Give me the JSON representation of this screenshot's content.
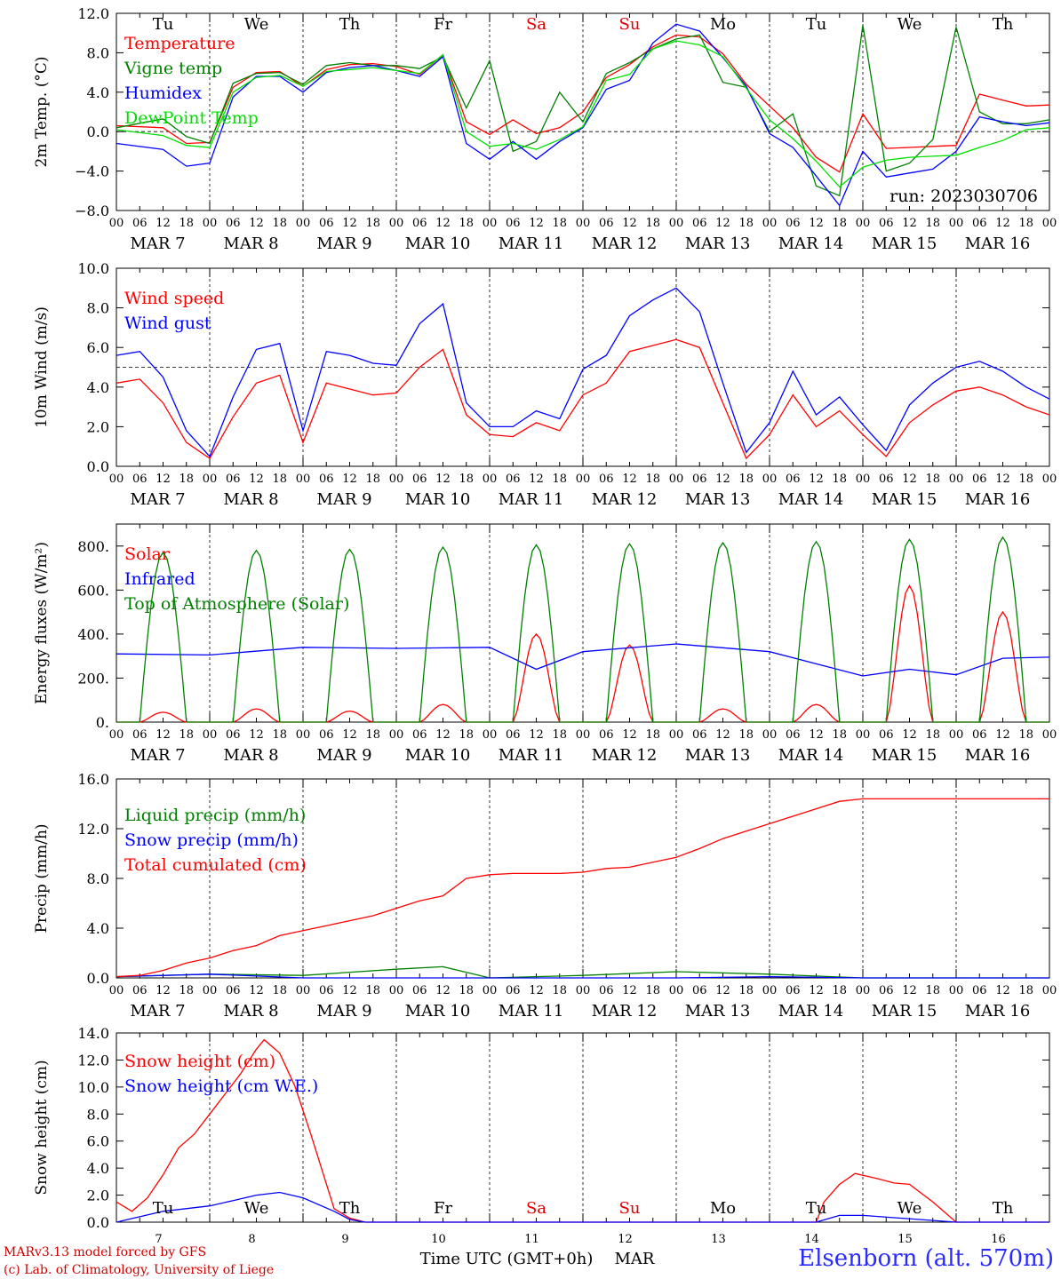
{
  "footer": {
    "model_line": "MARv3.13 model forced by GFS",
    "lab_line": "(c) Lab. of Climatology, University of Liege",
    "station": "Elsenborn (alt. 570m)",
    "xlabel": "Time UTC (GMT+0h)",
    "xlabel_month": "MAR",
    "run": "run: 2023030706"
  },
  "days": [
    "Tu",
    "We",
    "Th",
    "Fr",
    "Sa",
    "Su",
    "Mo",
    "Tu",
    "We",
    "Th"
  ],
  "day_colors": [
    "#000000",
    "#000000",
    "#000000",
    "#000000",
    "#e00000",
    "#e00000",
    "#000000",
    "#000000",
    "#000000",
    "#000000"
  ],
  "date_labels": [
    "MAR  7",
    "MAR  8",
    "MAR  9",
    "MAR 10",
    "MAR 11",
    "MAR 12",
    "MAR 13",
    "MAR 14",
    "MAR 15",
    "MAR 16"
  ],
  "bottom_day_numbers": [
    "7",
    "8",
    "9",
    "10",
    "11",
    "12",
    "13",
    "14",
    "15",
    "16"
  ],
  "hour_ticks": [
    "00",
    "06",
    "12",
    "18"
  ],
  "colors": {
    "red": "#ff0000",
    "green": "#008000",
    "blue": "#0000ff",
    "lightgreen": "#00e000"
  },
  "chart_data": [
    {
      "type": "line",
      "ylabel": "2m Temp. (°C)",
      "ylim": [
        -8,
        12
      ],
      "yticks": [
        "12.0",
        "8.0",
        "4.0",
        "0.0",
        "−4.0",
        "−8.0"
      ],
      "x_unit": "hours since MAR 7 00 UTC",
      "reference_line": 0,
      "series": [
        {
          "name": "Temperature",
          "color": "#ff0000",
          "x": [
            0,
            12,
            18,
            24,
            30,
            36,
            42,
            48,
            54,
            60,
            66,
            72,
            78,
            84,
            90,
            96,
            102,
            108,
            114,
            120,
            126,
            132,
            138,
            144,
            150,
            156,
            162,
            168,
            174,
            180,
            186,
            192,
            198,
            204,
            210,
            216,
            222,
            228,
            234,
            240
          ],
          "y": [
            0.6,
            0.4,
            -1.2,
            -1.1,
            4.5,
            6.0,
            6.1,
            4.6,
            6.3,
            6.8,
            6.9,
            6.6,
            5.8,
            7.8,
            1.0,
            -0.3,
            1.2,
            -0.2,
            0.4,
            2.0,
            5.5,
            6.8,
            8.6,
            9.8,
            9.6,
            7.9,
            4.8,
            2.6,
            0.4,
            -2.6,
            -4.1,
            1.8,
            -1.7,
            -1.6,
            -1.5,
            -1.4,
            3.8,
            3.2,
            2.6,
            2.7
          ]
        },
        {
          "name": "Vigne temp",
          "color": "#008000",
          "x": [
            0,
            12,
            18,
            24,
            30,
            36,
            42,
            48,
            54,
            60,
            66,
            72,
            78,
            84,
            90,
            96,
            102,
            108,
            114,
            120,
            126,
            132,
            138,
            144,
            150,
            156,
            162,
            168,
            174,
            180,
            186,
            192,
            198,
            204,
            210,
            216,
            222,
            228,
            234,
            240
          ],
          "y": [
            0.4,
            1.3,
            -0.5,
            -1.2,
            4.9,
            5.9,
            6.0,
            4.8,
            6.7,
            7.0,
            6.7,
            6.7,
            6.4,
            7.6,
            2.4,
            7.2,
            -2.0,
            -1.0,
            4.0,
            1.0,
            5.9,
            7.0,
            8.4,
            9.4,
            9.8,
            5.0,
            4.5,
            0.0,
            1.8,
            -5.5,
            -6.5,
            10.8,
            -4.0,
            -3.2,
            -0.8,
            10.6,
            2.0,
            0.8,
            0.8,
            1.2
          ]
        },
        {
          "name": "Humidex",
          "color": "#0000ff",
          "x": [
            0,
            12,
            18,
            24,
            30,
            36,
            42,
            48,
            54,
            60,
            66,
            72,
            78,
            84,
            90,
            96,
            102,
            108,
            114,
            120,
            126,
            132,
            138,
            144,
            150,
            156,
            162,
            168,
            174,
            180,
            186,
            192,
            198,
            204,
            210,
            216,
            222,
            228,
            234,
            240
          ],
          "y": [
            -1.2,
            -1.8,
            -3.5,
            -3.2,
            3.5,
            5.6,
            5.6,
            4.0,
            6.0,
            6.5,
            6.7,
            6.2,
            5.6,
            7.6,
            -1.2,
            -2.8,
            -1.0,
            -2.8,
            -1.0,
            0.4,
            4.3,
            5.2,
            9.0,
            10.9,
            10.2,
            7.5,
            4.6,
            -0.2,
            -1.6,
            -4.5,
            -7.5,
            -2.0,
            -4.6,
            -4.2,
            -3.8,
            -2.0,
            1.5,
            1.0,
            0.6,
            0.9
          ]
        },
        {
          "name": "DewPoint Temp",
          "color": "#00e000",
          "x": [
            0,
            12,
            18,
            24,
            30,
            36,
            42,
            48,
            54,
            60,
            66,
            72,
            78,
            84,
            90,
            96,
            102,
            108,
            114,
            120,
            126,
            132,
            138,
            144,
            150,
            156,
            162,
            168,
            174,
            180,
            186,
            192,
            198,
            204,
            210,
            216,
            222,
            228,
            234,
            240
          ],
          "y": [
            0.2,
            -0.4,
            -1.4,
            -1.6,
            4.0,
            5.5,
            5.7,
            4.6,
            6.1,
            6.3,
            6.5,
            6.2,
            5.9,
            7.8,
            0.0,
            -1.5,
            -1.2,
            -1.8,
            -0.8,
            0.5,
            5.2,
            5.8,
            8.4,
            9.2,
            8.8,
            7.6,
            4.4,
            1.2,
            -0.7,
            -3.0,
            -5.6,
            -3.6,
            -2.9,
            -2.6,
            -2.5,
            -2.4,
            -1.6,
            -0.9,
            0.2,
            0.4
          ]
        }
      ]
    },
    {
      "type": "line",
      "ylabel": "10m Wind (m/s)",
      "ylim": [
        0,
        10
      ],
      "yticks": [
        "10.0",
        "8.0",
        "6.0",
        "4.0",
        "2.0",
        "0.0"
      ],
      "reference_line": 5,
      "series": [
        {
          "name": "Wind speed",
          "color": "#ff0000",
          "x": [
            0,
            6,
            12,
            18,
            24,
            30,
            36,
            42,
            48,
            54,
            60,
            66,
            72,
            78,
            84,
            90,
            96,
            102,
            108,
            114,
            120,
            126,
            132,
            138,
            144,
            150,
            156,
            162,
            168,
            174,
            180,
            186,
            192,
            198,
            204,
            210,
            216,
            222,
            228,
            234,
            240
          ],
          "y": [
            4.2,
            4.4,
            3.2,
            1.2,
            0.4,
            2.5,
            4.2,
            4.6,
            1.2,
            4.2,
            3.9,
            3.6,
            3.7,
            5.0,
            5.9,
            2.6,
            1.6,
            1.5,
            2.2,
            1.8,
            3.6,
            4.2,
            5.8,
            6.1,
            6.4,
            6.0,
            3.2,
            0.4,
            1.6,
            3.6,
            2.0,
            2.8,
            1.6,
            0.5,
            2.2,
            3.1,
            3.8,
            4.0,
            3.6,
            3.0,
            2.6
          ]
        },
        {
          "name": "Wind gust",
          "color": "#0000ff",
          "x": [
            0,
            6,
            12,
            18,
            24,
            30,
            36,
            42,
            48,
            54,
            60,
            66,
            72,
            78,
            84,
            90,
            96,
            102,
            108,
            114,
            120,
            126,
            132,
            138,
            144,
            150,
            156,
            162,
            168,
            174,
            180,
            186,
            192,
            198,
            204,
            210,
            216,
            222,
            228,
            234,
            240
          ],
          "y": [
            5.6,
            5.8,
            4.5,
            1.8,
            0.5,
            3.5,
            5.9,
            6.2,
            1.8,
            5.8,
            5.6,
            5.2,
            5.1,
            7.2,
            8.2,
            3.2,
            2.0,
            2.0,
            2.8,
            2.4,
            4.9,
            5.6,
            7.6,
            8.4,
            9.0,
            7.8,
            4.2,
            0.7,
            2.2,
            4.8,
            2.6,
            3.5,
            2.1,
            0.8,
            3.1,
            4.2,
            5.0,
            5.3,
            4.8,
            4.0,
            3.4
          ]
        }
      ]
    },
    {
      "type": "line",
      "ylabel": "Energy fluxes (W/m²)",
      "ylim": [
        0,
        900
      ],
      "yticks": [
        "800.",
        "600.",
        "400.",
        "200.",
        "0."
      ],
      "series": [
        {
          "name": "Solar",
          "color": "#ff0000",
          "peaks": [
            45,
            60,
            50,
            80,
            400,
            350,
            60,
            80,
            620,
            500
          ]
        },
        {
          "name": "Infrared",
          "color": "#0000ff",
          "x": [
            0,
            24,
            48,
            72,
            96,
            108,
            120,
            144,
            168,
            192,
            204,
            216,
            228,
            240
          ],
          "y": [
            310,
            305,
            340,
            335,
            340,
            240,
            320,
            355,
            320,
            210,
            240,
            215,
            290,
            295
          ]
        },
        {
          "name": "Top of Atmosphere (Solar)",
          "color": "#008000",
          "peaks": [
            770,
            780,
            785,
            795,
            805,
            810,
            815,
            820,
            830,
            840
          ]
        }
      ]
    },
    {
      "type": "line",
      "ylabel": "Precip (mm/h)",
      "ylim": [
        0,
        16
      ],
      "yticks": [
        "16.0",
        "12.0",
        "8.0",
        "4.0",
        "0.0"
      ],
      "series": [
        {
          "name": "Liquid precip (mm/h)",
          "color": "#008000",
          "x": [
            0,
            24,
            48,
            72,
            84,
            96,
            120,
            144,
            168,
            192,
            216,
            240
          ],
          "y": [
            0.1,
            0.3,
            0.2,
            0.7,
            0.9,
            0.0,
            0.2,
            0.5,
            0.3,
            0.0,
            0.0,
            0.0
          ]
        },
        {
          "name": "Snow precip (mm/h)",
          "color": "#0000ff",
          "x": [
            0,
            24,
            48,
            72,
            96,
            120,
            144,
            168,
            192,
            216,
            240
          ],
          "y": [
            0.1,
            0.3,
            0.0,
            0.0,
            0.0,
            0.0,
            0.0,
            0.1,
            0.0,
            0.0,
            0.0
          ]
        },
        {
          "name": "Total cumulated (cm)",
          "color": "#ff0000",
          "x": [
            0,
            6,
            12,
            18,
            24,
            30,
            36,
            42,
            48,
            54,
            60,
            66,
            72,
            78,
            84,
            90,
            96,
            102,
            108,
            114,
            120,
            126,
            132,
            138,
            144,
            150,
            156,
            162,
            168,
            174,
            180,
            186,
            192,
            198,
            204,
            210,
            216,
            222,
            228,
            234,
            240
          ],
          "y": [
            0.1,
            0.2,
            0.6,
            1.2,
            1.6,
            2.2,
            2.6,
            3.4,
            3.8,
            4.2,
            4.6,
            5.0,
            5.6,
            6.2,
            6.6,
            8.0,
            8.3,
            8.4,
            8.4,
            8.4,
            8.5,
            8.8,
            8.9,
            9.3,
            9.7,
            10.4,
            11.2,
            11.8,
            12.4,
            13.0,
            13.6,
            14.2,
            14.4,
            14.4,
            14.4,
            14.4,
            14.4,
            14.4,
            14.4,
            14.4,
            14.4
          ]
        }
      ]
    },
    {
      "type": "line",
      "ylabel": "Snow height (cm)",
      "ylim": [
        0,
        14
      ],
      "yticks": [
        "14.0",
        "12.0",
        "10.0",
        "8.0",
        "6.0",
        "4.0",
        "2.0",
        "0.0"
      ],
      "series": [
        {
          "name": "Snow height (cm)",
          "color": "#ff0000",
          "x": [
            0,
            4,
            8,
            12,
            16,
            20,
            24,
            28,
            32,
            36,
            38,
            42,
            46,
            50,
            56,
            60,
            64,
            72,
            96,
            120,
            144,
            168,
            180,
            182,
            186,
            190,
            196,
            200,
            204,
            210,
            216,
            240
          ],
          "y": [
            1.5,
            0.8,
            1.8,
            3.5,
            5.5,
            6.5,
            8.0,
            9.5,
            11.0,
            12.8,
            13.5,
            12.5,
            10.0,
            6.5,
            1.0,
            0.3,
            0.0,
            0.0,
            0.0,
            0.0,
            0.0,
            0.0,
            0.0,
            1.5,
            2.8,
            3.6,
            3.2,
            2.9,
            2.8,
            1.5,
            0.0,
            0.0
          ]
        },
        {
          "name": "Snow height (cm W.E.)",
          "color": "#0000ff",
          "x": [
            0,
            12,
            24,
            30,
            36,
            42,
            48,
            56,
            60,
            64,
            72,
            96,
            120,
            144,
            168,
            180,
            186,
            192,
            216,
            240
          ],
          "y": [
            0.0,
            0.8,
            1.2,
            1.6,
            2.0,
            2.2,
            1.8,
            0.8,
            0.2,
            0.0,
            0.0,
            0.0,
            0.0,
            0.0,
            0.0,
            0.0,
            0.5,
            0.5,
            0.0,
            0.0
          ]
        }
      ]
    }
  ]
}
